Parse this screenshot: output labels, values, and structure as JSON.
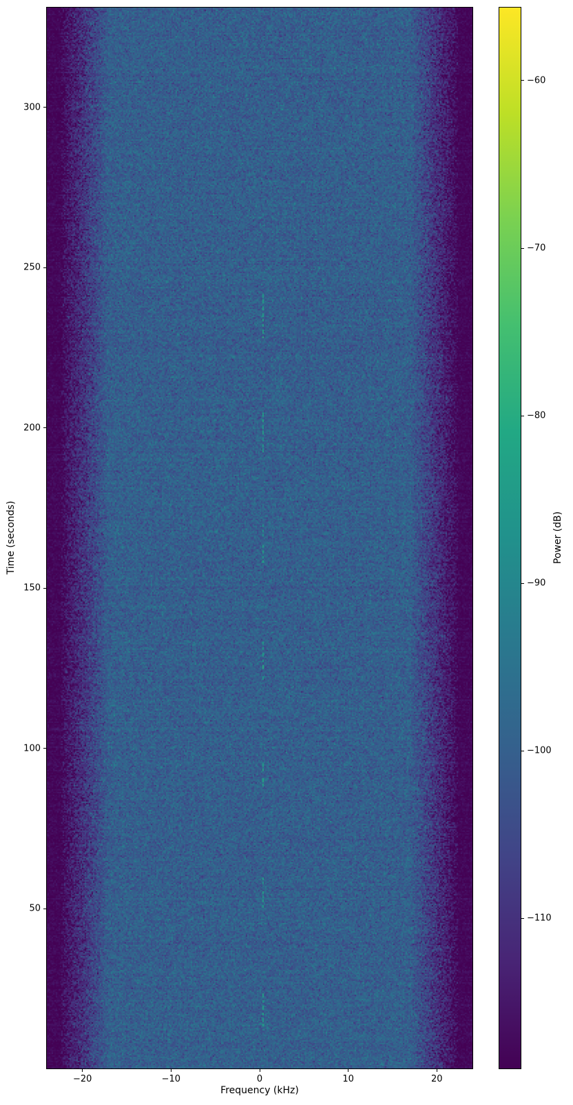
{
  "chart_data": {
    "type": "heatmap",
    "subtype": "spectrogram",
    "title": "",
    "xlabel": "Frequency (kHz)",
    "ylabel": "Time (seconds)",
    "colorbar_label": "Power (dB)",
    "xlim": [
      -24.1,
      24.1
    ],
    "ylim": [
      0,
      331.3
    ],
    "clim": [
      -119,
      -55.6
    ],
    "x_ticks": [
      -20,
      -10,
      0,
      10,
      20
    ],
    "y_ticks": [
      50,
      100,
      150,
      200,
      250,
      300
    ],
    "colorbar_ticks": [
      -60,
      -70,
      -80,
      -90,
      -100,
      -110
    ],
    "grid": false,
    "colormap": {
      "name": "viridis",
      "stops": [
        "#440154",
        "#482475",
        "#414487",
        "#35608d",
        "#2a788e",
        "#21918c",
        "#22a884",
        "#44bf70",
        "#7ad151",
        "#bddf26",
        "#fde725"
      ]
    },
    "noise_model": {
      "passband_floor_db": -100,
      "stopband_floor_db": -118,
      "rolloff_start_khz": 17.0,
      "stopband_start_khz": 22.4,
      "speckle_std_db": 3.2,
      "transition_std_db": 4.3,
      "stopband_std_db": 1.3,
      "row_variation_std_db": 0.5
    },
    "signal": {
      "center_freq_khz": 0.25,
      "linewidth_khz": 0.16,
      "style": "dashed-intermittent",
      "bursts": [
        {
          "t_start": 11,
          "t_end": 25.5,
          "power_db": -84
        },
        {
          "t_start": 49.5,
          "t_end": 60,
          "power_db": -84
        },
        {
          "t_start": 85,
          "t_end": 95.5,
          "power_db": -84
        },
        {
          "t_start": 120.5,
          "t_end": 133.5,
          "power_db": -84
        },
        {
          "t_start": 157,
          "t_end": 170,
          "power_db": -84
        },
        {
          "t_start": 192,
          "t_end": 205,
          "power_db": -84
        },
        {
          "t_start": 228,
          "t_end": 242,
          "power_db": -84
        },
        {
          "t_start": 265,
          "t_end": 277,
          "power_db": -95
        }
      ]
    }
  }
}
